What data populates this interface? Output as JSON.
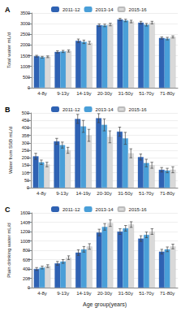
{
  "chart_data": [
    {
      "type": "bar",
      "title": "A",
      "ylabel": "Total water mL/d",
      "categories": [
        "4-8y",
        "9-13y",
        "14-19y",
        "20-30y",
        "31-50y",
        "51-70y",
        "71-80y"
      ],
      "series": [
        {
          "name": "2011-12",
          "color": "#2f62b3",
          "values": [
            1480,
            1680,
            2200,
            2930,
            3200,
            3050,
            2330
          ],
          "errors": [
            40,
            50,
            80,
            60,
            50,
            60,
            50
          ]
        },
        {
          "name": "2013-14",
          "color": "#4a9fd8",
          "values": [
            1430,
            1700,
            2150,
            2920,
            3150,
            2950,
            2300
          ],
          "errors": [
            40,
            50,
            80,
            60,
            60,
            60,
            60
          ]
        },
        {
          "name": "2015-16",
          "color": "#d9d9d9",
          "values": [
            1450,
            1720,
            2100,
            2960,
            3100,
            3050,
            2380
          ],
          "errors": [
            40,
            50,
            70,
            60,
            60,
            60,
            50
          ]
        }
      ],
      "ylim": [
        0,
        3500
      ],
      "yticks": [
        0,
        500,
        1000,
        1500,
        2000,
        2500,
        3000,
        3500
      ],
      "grid": true,
      "legend": "top"
    },
    {
      "type": "bar",
      "title": "B",
      "ylabel": "Water from SSB mL/d",
      "categories": [
        "4-8y",
        "9-13y",
        "14-19y",
        "20-30y",
        "31-50y",
        "51-70y",
        "71-80y"
      ],
      "series": [
        {
          "name": "2011-12",
          "color": "#2f62b3",
          "values": [
            210,
            310,
            460,
            465,
            375,
            205,
            120
          ],
          "errors": [
            20,
            20,
            30,
            30,
            30,
            20,
            15
          ]
        },
        {
          "name": "2013-14",
          "color": "#4a9fd8",
          "values": [
            170,
            285,
            410,
            420,
            330,
            165,
            115
          ],
          "errors": [
            15,
            20,
            40,
            40,
            40,
            25,
            15
          ]
        },
        {
          "name": "2015-16",
          "color": "#d9d9d9",
          "values": [
            155,
            250,
            350,
            340,
            230,
            150,
            120
          ],
          "errors": [
            15,
            20,
            40,
            40,
            30,
            20,
            20
          ]
        }
      ],
      "ylim": [
        0,
        500
      ],
      "yticks": [
        0,
        50,
        100,
        150,
        200,
        250,
        300,
        350,
        400,
        450,
        500
      ],
      "grid": true,
      "legend": "top"
    },
    {
      "type": "bar",
      "title": "C",
      "ylabel": "Plain drinking water mL/d",
      "xlabel": "Age group(years)",
      "categories": [
        "4-8y",
        "9-13y",
        "14-19y",
        "20-30y",
        "31-50y",
        "51-70y",
        "71-80y"
      ],
      "series": [
        {
          "name": "2011-12",
          "color": "#2f62b3",
          "values": [
            400,
            520,
            750,
            1180,
            1200,
            1050,
            770
          ],
          "errors": [
            30,
            40,
            60,
            70,
            60,
            60,
            50
          ]
        },
        {
          "name": "2013-14",
          "color": "#4a9fd8",
          "values": [
            430,
            560,
            820,
            1300,
            1270,
            1130,
            820
          ],
          "errors": [
            30,
            40,
            60,
            70,
            60,
            60,
            50
          ]
        },
        {
          "name": "2015-16",
          "color": "#d9d9d9",
          "values": [
            460,
            640,
            880,
            1380,
            1350,
            1200,
            880
          ],
          "errors": [
            30,
            40,
            60,
            70,
            60,
            60,
            50
          ]
        }
      ],
      "ylim": [
        0,
        1600
      ],
      "yticks": [
        0,
        200,
        400,
        600,
        800,
        1000,
        1200,
        1400,
        1600
      ],
      "grid": true,
      "legend": "top"
    }
  ]
}
